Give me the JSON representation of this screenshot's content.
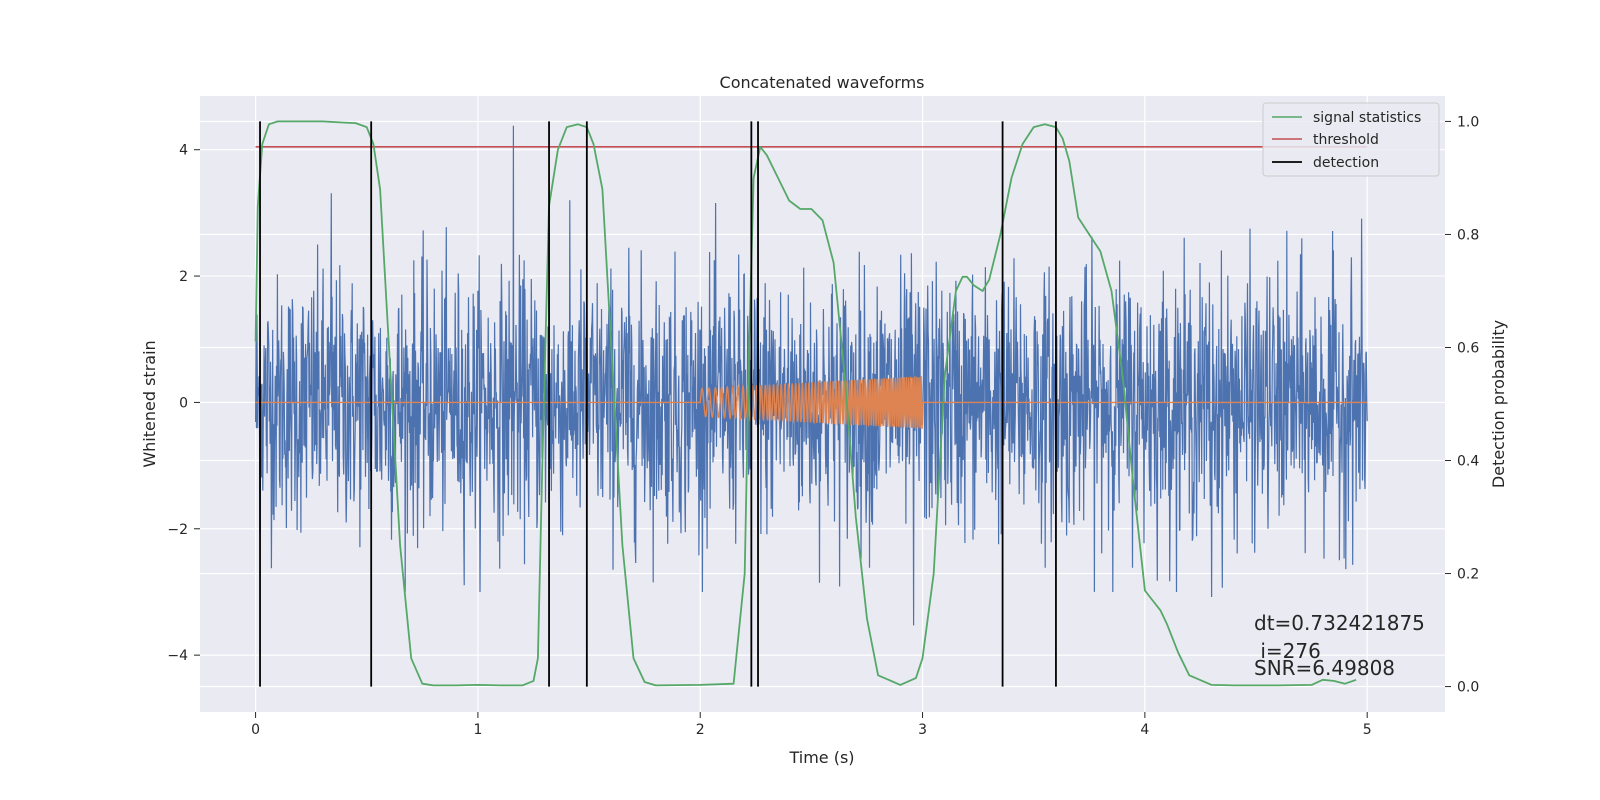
{
  "chart_data": {
    "type": "line",
    "title": "Concatenated waveforms",
    "xlabel": "Time (s)",
    "ylabel_left": "Whitened strain",
    "ylabel_right": "Detection probability",
    "xlim": [
      -0.25,
      5.35
    ],
    "ylim_left": [
      -4.9,
      4.85
    ],
    "ylim_right": [
      -0.045,
      1.045
    ],
    "x_ticks": [
      0,
      1,
      2,
      3,
      4,
      5
    ],
    "y_left_ticks": [
      -4,
      -2,
      0,
      2,
      4
    ],
    "y_left_tick_labels": [
      "−4",
      "−2",
      "0",
      "2",
      "4"
    ],
    "y_right_ticks": [
      0.0,
      0.2,
      0.4,
      0.6,
      0.8,
      1.0
    ],
    "y_right_tick_labels": [
      "0.0",
      "0.2",
      "0.4",
      "0.6",
      "0.8",
      "1.0"
    ],
    "grid": true,
    "legend_position": "top-right",
    "colors": {
      "background": "#eaeaf2",
      "grid": "#ffffff",
      "noise": "#4c72b0",
      "signal": "#dd8452",
      "statistic": "#55a868",
      "threshold": "#c44e52",
      "detection": "#000000"
    },
    "series": [
      {
        "name": "whitened strain (noise)",
        "axis": "left",
        "x_range": [
          0,
          5
        ],
        "typical_amplitude": 1.0,
        "peak_values": [
          4.38,
          -3.53,
          3.31,
          -3.08
        ]
      },
      {
        "name": "injected signal",
        "axis": "left",
        "x_range": [
          2.0,
          3.0
        ],
        "amplitude_start": 0.22,
        "amplitude_end": 0.42
      },
      {
        "name": "signal statistics",
        "axis": "right",
        "x": [
          0.0,
          0.01,
          0.03,
          0.06,
          0.1,
          0.2,
          0.3,
          0.4,
          0.45,
          0.5,
          0.53,
          0.56,
          0.6,
          0.65,
          0.7,
          0.75,
          0.8,
          0.9,
          1.0,
          1.1,
          1.2,
          1.25,
          1.27,
          1.29,
          1.32,
          1.36,
          1.4,
          1.45,
          1.49,
          1.52,
          1.56,
          1.6,
          1.65,
          1.7,
          1.75,
          1.8,
          2.0,
          2.15,
          2.2,
          2.22,
          2.24,
          2.27,
          2.3,
          2.35,
          2.4,
          2.45,
          2.5,
          2.55,
          2.6,
          2.65,
          2.7,
          2.75,
          2.8,
          2.9,
          2.97,
          3.0,
          3.05,
          3.1,
          3.15,
          3.18,
          3.2,
          3.23,
          3.27,
          3.3,
          3.35,
          3.4,
          3.45,
          3.5,
          3.55,
          3.6,
          3.63,
          3.66,
          3.7,
          3.75,
          3.8,
          3.85,
          3.9,
          3.95,
          4.0,
          4.03,
          4.07,
          4.1,
          4.15,
          4.2,
          4.3,
          4.4,
          4.6,
          4.75,
          4.8,
          4.85,
          4.9,
          4.95
        ],
        "values": [
          0.61,
          0.85,
          0.96,
          0.995,
          1.0,
          1.0,
          1.0,
          0.998,
          0.997,
          0.99,
          0.96,
          0.88,
          0.6,
          0.25,
          0.05,
          0.005,
          0.002,
          0.002,
          0.003,
          0.002,
          0.002,
          0.01,
          0.05,
          0.4,
          0.85,
          0.95,
          0.99,
          0.995,
          0.99,
          0.96,
          0.88,
          0.6,
          0.25,
          0.05,
          0.008,
          0.002,
          0.003,
          0.005,
          0.2,
          0.6,
          0.9,
          0.955,
          0.94,
          0.9,
          0.86,
          0.845,
          0.845,
          0.825,
          0.75,
          0.55,
          0.3,
          0.12,
          0.02,
          0.003,
          0.015,
          0.05,
          0.2,
          0.55,
          0.7,
          0.725,
          0.725,
          0.71,
          0.7,
          0.72,
          0.8,
          0.9,
          0.96,
          0.99,
          0.995,
          0.99,
          0.97,
          0.93,
          0.83,
          0.8,
          0.77,
          0.7,
          0.55,
          0.35,
          0.17,
          0.155,
          0.135,
          0.11,
          0.06,
          0.02,
          0.003,
          0.002,
          0.002,
          0.003,
          0.012,
          0.01,
          0.005,
          0.012
        ]
      },
      {
        "name": "threshold",
        "axis": "right",
        "x": [
          0.0,
          5.0
        ],
        "values": [
          0.955,
          0.955
        ]
      },
      {
        "name": "detection",
        "axis": "right",
        "type": "vlines",
        "x": [
          0.02,
          0.52,
          1.32,
          1.49,
          2.23,
          2.26,
          3.36,
          3.6
        ],
        "ymin": 0.0,
        "ymax": 1.0
      }
    ],
    "legend": [
      "signal statistics",
      "threshold",
      "detection"
    ],
    "annotations": {
      "dt": "dt=0.732421875",
      "i": " i=276",
      "snr": "SNR=6.49808"
    }
  }
}
